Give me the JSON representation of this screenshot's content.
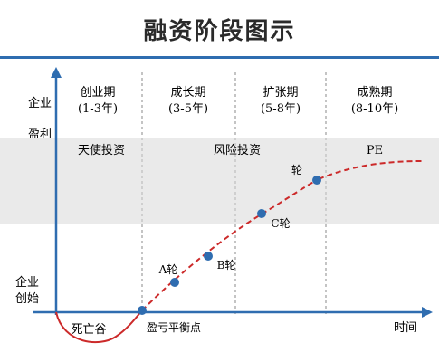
{
  "title": "融资阶段图示",
  "y_axis": {
    "top_label": [
      "企业",
      "盈利"
    ],
    "bottom_label": [
      "企业",
      "创始"
    ]
  },
  "x_axis": {
    "label": "时间"
  },
  "stages": [
    {
      "name": "创业期",
      "years": "(1-3年)"
    },
    {
      "name": "成长期",
      "years": "(3-5年)"
    },
    {
      "name": "扩张期",
      "years": "(5-8年)"
    },
    {
      "name": "成熟期",
      "years": "(8-10年)"
    }
  ],
  "investors": [
    "天使投资",
    "风险投资",
    "PE"
  ],
  "points": {
    "valley": "死亡谷",
    "breakeven": "盈亏平衡点",
    "round_a": "A轮",
    "round_b": "B轮",
    "round_c": "C轮",
    "round_d": "轮"
  },
  "colors": {
    "accent_blue": "#2f6db0",
    "curve_red": "#cc2a2a",
    "band": "#d9d9d9"
  }
}
